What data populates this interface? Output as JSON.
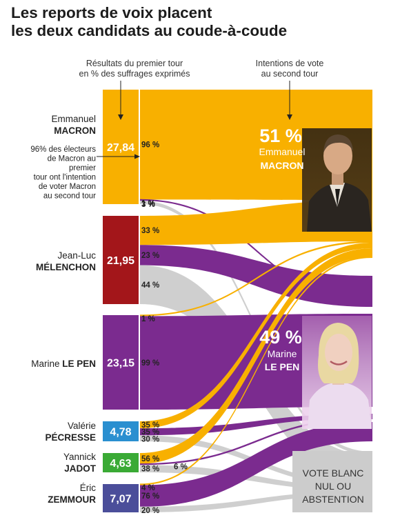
{
  "title": {
    "line1": "Les reports de voix placent",
    "line2": "les deux candidats au coude-à-coude"
  },
  "header": {
    "first_round_line1": "Résultats du premier tour",
    "first_round_line2": "en % des suffrages exprimés",
    "second_round_line1": "Intentions de vote",
    "second_round_line2": "au second tour"
  },
  "annotation": {
    "lines": [
      "96% des électeurs",
      "de Macron au",
      "premier",
      "tour ont l'intention",
      "de voter Macron",
      "au second tour"
    ]
  },
  "colors": {
    "macron": "#f8b000",
    "lepen": "#7b2b8f",
    "abstention": "#cccccc",
    "pecresse": "#2a8fd0",
    "jadot": "#3aaa35",
    "zemmour": "#4b4e9a",
    "melenchon": "#a3161a"
  },
  "chart_data": {
    "type": "sankey",
    "sources": [
      {
        "key": "macron",
        "first": "Emmanuel",
        "last": "MACRON",
        "value": "27,84",
        "flows": [
          {
            "to": "macron",
            "pct": 96,
            "label": "96 %"
          },
          {
            "to": "lepen",
            "pct": 1,
            "label": "1 %"
          },
          {
            "to": "blank",
            "pct": 3,
            "label": "3 %"
          }
        ]
      },
      {
        "key": "melenchon",
        "first": "Jean-Luc",
        "last": "MÉLENCHON",
        "value": "21,95",
        "flows": [
          {
            "to": "macron",
            "pct": 33,
            "label": "33 %"
          },
          {
            "to": "lepen",
            "pct": 23,
            "label": "23 %"
          },
          {
            "to": "blank",
            "pct": 44,
            "label": "44 %"
          }
        ]
      },
      {
        "key": "lepen",
        "first": "Marine",
        "last": "LE PEN",
        "value": "23,15",
        "flows": [
          {
            "to": "macron",
            "pct": 1,
            "label": "1 %"
          },
          {
            "to": "lepen",
            "pct": 99,
            "label": "99 %"
          }
        ]
      },
      {
        "key": "pecresse",
        "first": "Valérie",
        "last": "PÉCRESSE",
        "value": "4,78",
        "flows": [
          {
            "to": "macron",
            "pct": 35,
            "label": "35 %"
          },
          {
            "to": "lepen",
            "pct": 35,
            "label": "35 %"
          },
          {
            "to": "blank",
            "pct": 30,
            "label": "30 %"
          }
        ]
      },
      {
        "key": "jadot",
        "first": "Yannick",
        "last": "JADOT",
        "value": "4,63",
        "flows": [
          {
            "to": "macron",
            "pct": 56,
            "label": "56 %"
          },
          {
            "to": "lepen",
            "pct": 6,
            "label": "6 %"
          },
          {
            "to": "blank",
            "pct": 38,
            "label": "38 %"
          }
        ]
      },
      {
        "key": "zemmour",
        "first": "Éric",
        "last": "ZEMMOUR",
        "value": "7,07",
        "flows": [
          {
            "to": "macron",
            "pct": 4,
            "label": "4 %"
          },
          {
            "to": "lepen",
            "pct": 76,
            "label": "76 %"
          },
          {
            "to": "blank",
            "pct": 20,
            "label": "20 %"
          }
        ]
      }
    ],
    "targets": [
      {
        "key": "macron",
        "value": "51 %",
        "first": "Emmanuel",
        "last": "MACRON"
      },
      {
        "key": "lepen",
        "value": "49 %",
        "first": "Marine",
        "last": "LE PEN"
      },
      {
        "key": "blank",
        "lines": [
          "VOTE BLANC",
          "NUL OU",
          "ABSTENTION"
        ]
      }
    ]
  }
}
